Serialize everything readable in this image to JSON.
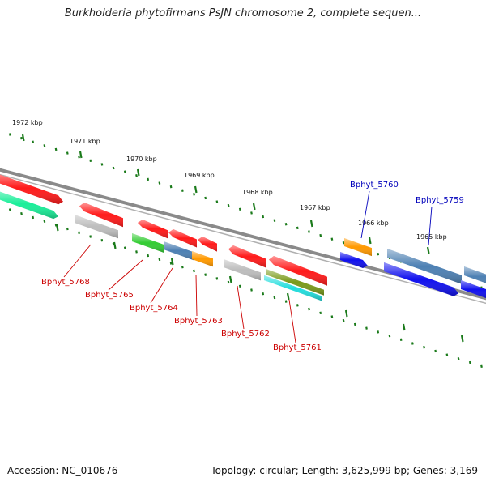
{
  "title": "Burkholderia phytofirmans PsJN chromosome 2, complete sequen...",
  "footer": {
    "accession_label": "Accession:",
    "accession": "NC_010676",
    "topology_label": "Topology:",
    "topology": "circular",
    "length_label": "Length:",
    "length": "3,625,999 bp",
    "genes_label": "Genes:",
    "genes": "3,169"
  },
  "ticks": [
    {
      "label": "1972 kbp"
    },
    {
      "label": "1971 kbp"
    },
    {
      "label": "1970 kbp"
    },
    {
      "label": "1969 kbp"
    },
    {
      "label": "1968 kbp"
    },
    {
      "label": "1967 kbp"
    },
    {
      "label": "1966 kbp"
    },
    {
      "label": "1965 kbp"
    }
  ],
  "gene_labels": [
    {
      "name": "Bphyt_5768",
      "color": "#cc0000"
    },
    {
      "name": "Bphyt_5765",
      "color": "#cc0000"
    },
    {
      "name": "Bphyt_5764",
      "color": "#cc0000"
    },
    {
      "name": "Bphyt_5763",
      "color": "#cc0000"
    },
    {
      "name": "Bphyt_5762",
      "color": "#cc0000"
    },
    {
      "name": "Bphyt_5761",
      "color": "#cc0000"
    },
    {
      "name": "Bphyt_5760",
      "color": "#0000bb"
    },
    {
      "name": "Bphyt_5759",
      "color": "#0000bb"
    }
  ],
  "colors": {
    "red": "#ff1a1a",
    "gray": "#bdbdbd",
    "green": "#33cc33",
    "steelblue": "#4d80b3",
    "orange": "#ff9900",
    "olive": "#7a9a1a",
    "cyan": "#22dddd",
    "teal": "#1aee99",
    "blue": "#1010ee",
    "backbone": "#8a8a8a",
    "tick": "#1a7a1a"
  }
}
